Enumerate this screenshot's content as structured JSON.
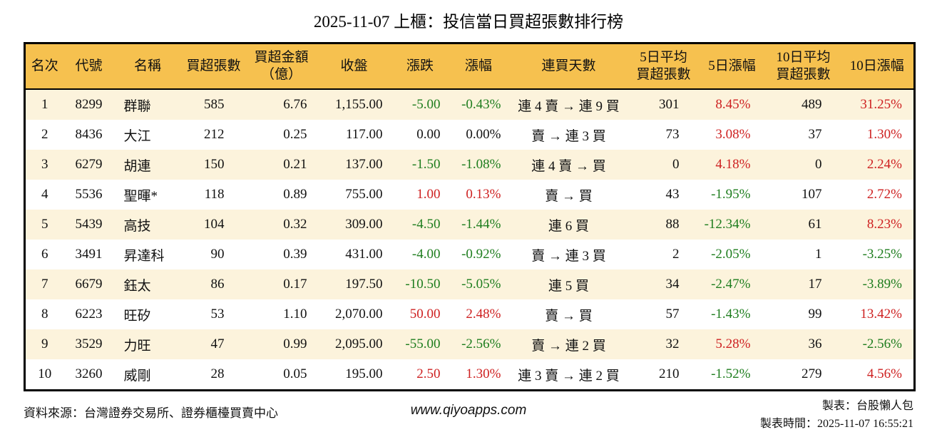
{
  "title": "2025-11-07 上櫃：投信當日買超張數排行榜",
  "chart_data": {
    "type": "table",
    "title": "2025-11-07 上櫃：投信當日買超張數排行榜",
    "columns": [
      "名次",
      "代號",
      "名稱",
      "買超張數",
      "買超金額\n（億）",
      "收盤",
      "漲跌",
      "漲幅",
      "連買天數",
      "5日平均\n買超張數",
      "5日漲幅",
      "10日平均\n買超張數",
      "10日漲幅"
    ],
    "rows": [
      [
        "1",
        "8299",
        "群聯",
        "585",
        "6.76",
        "1,155.00",
        "-5.00",
        "-0.43%",
        "連 4 賣 → 連 9 買",
        "301",
        "8.45%",
        "489",
        "31.25%"
      ],
      [
        "2",
        "8436",
        "大江",
        "212",
        "0.25",
        "117.00",
        "0.00",
        "0.00%",
        "賣 → 連 3 買",
        "73",
        "3.08%",
        "37",
        "1.30%"
      ],
      [
        "3",
        "6279",
        "胡連",
        "150",
        "0.21",
        "137.00",
        "-1.50",
        "-1.08%",
        "連 4 賣 → 買",
        "0",
        "4.18%",
        "0",
        "2.24%"
      ],
      [
        "4",
        "5536",
        "聖暉*",
        "118",
        "0.89",
        "755.00",
        "1.00",
        "0.13%",
        "賣 → 買",
        "43",
        "-1.95%",
        "107",
        "2.72%"
      ],
      [
        "5",
        "5439",
        "高技",
        "104",
        "0.32",
        "309.00",
        "-4.50",
        "-1.44%",
        "連 6 買",
        "88",
        "-12.34%",
        "61",
        "8.23%"
      ],
      [
        "6",
        "3491",
        "昇達科",
        "90",
        "0.39",
        "431.00",
        "-4.00",
        "-0.92%",
        "賣 → 連 3 買",
        "2",
        "-2.05%",
        "1",
        "-3.25%"
      ],
      [
        "7",
        "6679",
        "鈺太",
        "86",
        "0.17",
        "197.50",
        "-10.50",
        "-5.05%",
        "連 5 買",
        "34",
        "-2.47%",
        "17",
        "-3.89%"
      ],
      [
        "8",
        "6223",
        "旺矽",
        "53",
        "1.10",
        "2,070.00",
        "50.00",
        "2.48%",
        "賣 → 買",
        "57",
        "-1.43%",
        "99",
        "13.42%"
      ],
      [
        "9",
        "3529",
        "力旺",
        "47",
        "0.99",
        "2,095.00",
        "-55.00",
        "-2.56%",
        "賣 → 連 2 買",
        "32",
        "5.28%",
        "36",
        "-2.56%"
      ],
      [
        "10",
        "3260",
        "威剛",
        "28",
        "0.05",
        "195.00",
        "2.50",
        "1.30%",
        "連 3 賣 → 連 2 買",
        "210",
        "-1.52%",
        "279",
        "4.56%"
      ]
    ]
  },
  "footer": {
    "source": "資料來源：台灣證券交易所、證券櫃檯買賣中心",
    "website": "www.qiyoapps.com",
    "author": "製表：台股懶人包",
    "timestamp": "製表時間：2025-11-07 16:55:21"
  },
  "colors": {
    "header_bg": "#F6C14F",
    "row_alt_bg": "#FCF3DC",
    "up_red": "#CE2121",
    "down_green": "#1E7D1E",
    "border": "#000000"
  }
}
